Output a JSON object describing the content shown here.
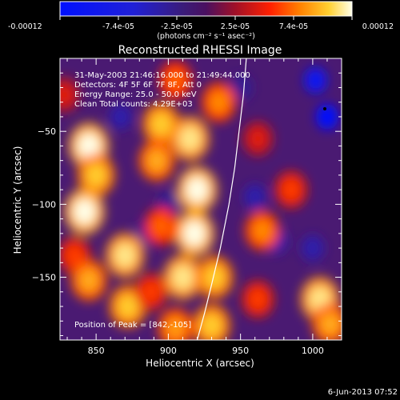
{
  "window": {
    "title": "Reconstructed RHESSI Image"
  },
  "colorbar": {
    "tick_labels": [
      "-0.00012",
      "-7.4e-05",
      "-2.5e-05",
      "2.5e-05",
      "7.4e-05",
      "0.00012"
    ],
    "units_label": "(photons cm⁻² s⁻¹ asec⁻²)",
    "colors": [
      "#0000ff",
      "#ff0000",
      "#ffd000",
      "#ffffff"
    ]
  },
  "annotations": {
    "time_range": "31-May-2003 21:46:16.000 to 21:49:44.000",
    "detectors": "Detectors: 4F 5F 6F 7F 8F, Att 0",
    "energy_range": "Energy Range: 25.0 - 50.0 keV",
    "clean_counts": "Clean    Total counts: 4.29E+03",
    "peak_position": "Position of Peak = [842,-105]"
  },
  "footer": {
    "date_stamp": "6-Jun-2013 07:52"
  },
  "chart_data": {
    "type": "heatmap",
    "title": "Reconstructed RHESSI Image",
    "xlabel": "Heliocentric X (arcsec)",
    "ylabel": "Heliocentric Y (arcsec)",
    "xlim": [
      825,
      1020
    ],
    "ylim": [
      -193,
      0
    ],
    "x_ticks": [
      850,
      900,
      950,
      1000
    ],
    "y_ticks": [
      -50,
      -100,
      -150
    ],
    "x_tick_labels": [
      "850",
      "900",
      "950",
      "1000"
    ],
    "y_tick_labels": [
      "−50",
      "−100",
      "−150"
    ],
    "color_range": [
      -0.00012,
      0.00012
    ],
    "limb_curve": [
      [
        920,
        -193
      ],
      [
        925,
        -175
      ],
      [
        930,
        -155
      ],
      [
        936,
        -130
      ],
      [
        942,
        -100
      ],
      [
        946,
        -75
      ],
      [
        949,
        -50
      ],
      [
        952,
        -25
      ],
      [
        954,
        0
      ]
    ],
    "intensity_blobs": [
      {
        "x": 828,
        "y": -25,
        "v": 4.5e-05
      },
      {
        "x": 845,
        "y": -60,
        "v": 0.00012
      },
      {
        "x": 850,
        "y": -80,
        "v": 0.0001
      },
      {
        "x": 842,
        "y": -105,
        "v": 0.00012
      },
      {
        "x": 835,
        "y": -135,
        "v": 6e-05
      },
      {
        "x": 845,
        "y": -152,
        "v": 9e-05
      },
      {
        "x": 870,
        "y": -135,
        "v": 0.00011
      },
      {
        "x": 872,
        "y": -170,
        "v": 0.0001
      },
      {
        "x": 895,
        "y": -45,
        "v": 0.0001
      },
      {
        "x": 892,
        "y": -70,
        "v": 9e-05
      },
      {
        "x": 905,
        "y": -15,
        "v": 7e-05
      },
      {
        "x": 915,
        "y": -55,
        "v": 0.00011
      },
      {
        "x": 935,
        "y": -30,
        "v": 8e-05
      },
      {
        "x": 920,
        "y": -90,
        "v": 0.00012
      },
      {
        "x": 918,
        "y": -120,
        "v": 0.00012
      },
      {
        "x": 895,
        "y": -115,
        "v": 7e-05
      },
      {
        "x": 910,
        "y": -150,
        "v": 0.00011
      },
      {
        "x": 932,
        "y": -150,
        "v": 0.0001
      },
      {
        "x": 888,
        "y": -160,
        "v": 6e-05
      },
      {
        "x": 930,
        "y": -183,
        "v": 0.0001
      },
      {
        "x": 965,
        "y": -118,
        "v": 8e-05
      },
      {
        "x": 962,
        "y": -165,
        "v": 6e-05
      },
      {
        "x": 985,
        "y": -90,
        "v": 6e-05
      },
      {
        "x": 1005,
        "y": -165,
        "v": 0.00011
      },
      {
        "x": 1012,
        "y": -182,
        "v": 9e-05
      },
      {
        "x": 962,
        "y": -55,
        "v": 4.5e-05
      },
      {
        "x": 905,
        "y": -185,
        "v": 8.5e-05
      }
    ],
    "negative_spots": [
      {
        "x": 1010,
        "y": -40,
        "v": -0.00012
      },
      {
        "x": 1002,
        "y": -15,
        "v": -0.0001
      },
      {
        "x": 960,
        "y": -95,
        "v": -4e-05
      },
      {
        "x": 975,
        "y": -125,
        "v": -4e-05
      },
      {
        "x": 900,
        "y": -100,
        "v": -3e-05
      },
      {
        "x": 950,
        "y": -20,
        "v": -3e-05
      },
      {
        "x": 885,
        "y": -120,
        "v": -3e-05
      },
      {
        "x": 1000,
        "y": -130,
        "v": -4e-05
      },
      {
        "x": 867,
        "y": -40,
        "v": -4e-05
      }
    ]
  }
}
